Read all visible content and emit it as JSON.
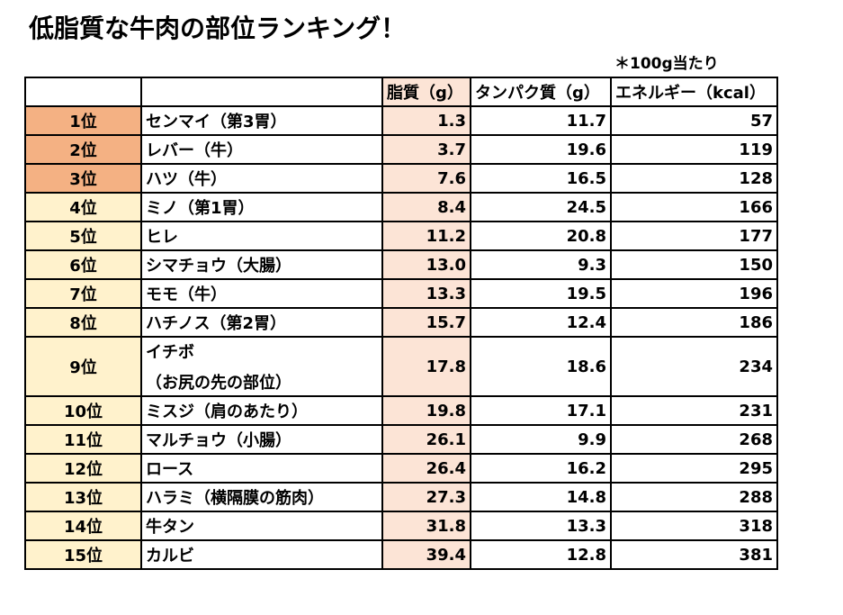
{
  "title": "低脂質な牛肉の部位ランキング！",
  "note": "＊100g当たり",
  "colors": {
    "top3_rank": "#f4b183",
    "rank": "#fff2cc",
    "fat_column": "#fce4d6"
  },
  "headers": {
    "rank": "",
    "name": "",
    "fat": "脂質（g）",
    "protein": "タンパク質（g）",
    "energy": "エネルギー（kcal）"
  },
  "rows": [
    {
      "rank": "1位",
      "name": "センマイ（第3胃）",
      "fat": "1.3",
      "protein": "11.7",
      "energy": "57"
    },
    {
      "rank": "2位",
      "name": "レバー（牛）",
      "fat": "3.7",
      "protein": "19.6",
      "energy": "119"
    },
    {
      "rank": "3位",
      "name": "ハツ（牛）",
      "fat": "7.6",
      "protein": "16.5",
      "energy": "128"
    },
    {
      "rank": "4位",
      "name": "ミノ（第1胃）",
      "fat": "8.4",
      "protein": "24.5",
      "energy": "166"
    },
    {
      "rank": "5位",
      "name": "ヒレ",
      "fat": "11.2",
      "protein": "20.8",
      "energy": "177"
    },
    {
      "rank": "6位",
      "name": "シマチョウ（大腸）",
      "fat": "13.0",
      "protein": "9.3",
      "energy": "150"
    },
    {
      "rank": "7位",
      "name": "モモ（牛）",
      "fat": "13.3",
      "protein": "19.5",
      "energy": "196"
    },
    {
      "rank": "8位",
      "name": "ハチノス（第2胃）",
      "fat": "15.7",
      "protein": "12.4",
      "energy": "186"
    },
    {
      "rank": "9位",
      "name": "イチボ",
      "name2": "（お尻の先の部位）",
      "fat": "17.8",
      "protein": "18.6",
      "energy": "234"
    },
    {
      "rank": "10位",
      "name": "ミスジ（肩のあたり）",
      "fat": "19.8",
      "protein": "17.1",
      "energy": "231"
    },
    {
      "rank": "11位",
      "name": "マルチョウ（小腸）",
      "fat": "26.1",
      "protein": "9.9",
      "energy": "268"
    },
    {
      "rank": "12位",
      "name": "ロース",
      "fat": "26.4",
      "protein": "16.2",
      "energy": "295"
    },
    {
      "rank": "13位",
      "name": "ハラミ（横隔膜の筋肉）",
      "fat": "27.3",
      "protein": "14.8",
      "energy": "288"
    },
    {
      "rank": "14位",
      "name": "牛タン",
      "fat": "31.8",
      "protein": "13.3",
      "energy": "318"
    },
    {
      "rank": "15位",
      "name": "カルビ",
      "fat": "39.4",
      "protein": "12.8",
      "energy": "381"
    }
  ]
}
